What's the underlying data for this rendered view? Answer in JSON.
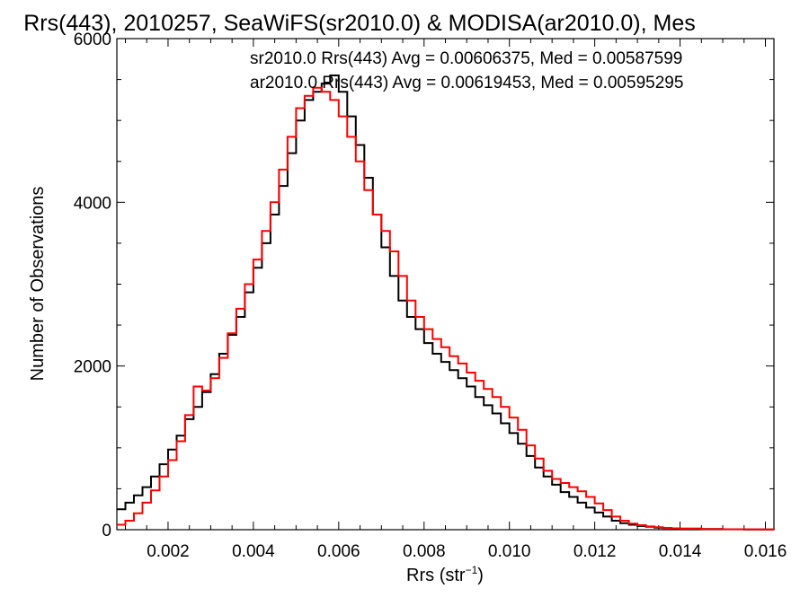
{
  "chart_data": {
    "type": "line",
    "title": "Rrs(443), 2010257, SeaWiFS(sr2010.0) & MODISA(ar2010.0), Mes",
    "xlabel_main": "Rrs (str",
    "xlabel_sup": "−1",
    "xlabel_tail": ")",
    "ylabel": "Number of Observations",
    "xlim": [
      0.0008,
      0.0162
    ],
    "ylim": [
      0,
      6000
    ],
    "xticks": [
      "0.002",
      "0.004",
      "0.006",
      "0.008",
      "0.010",
      "0.012",
      "0.014",
      "0.016"
    ],
    "xtick_values": [
      0.002,
      0.004,
      0.006,
      0.008,
      0.01,
      0.012,
      0.014,
      0.016
    ],
    "yticks": [
      "0",
      "2000",
      "4000",
      "6000"
    ],
    "ytick_values": [
      0,
      2000,
      4000,
      6000
    ],
    "grid": false,
    "legend_position": "top-right",
    "annotations": [
      {
        "text": "sr2010.0 Rrs(443) Avg = 0.00606375, Med = 0.00587599",
        "color": "#000000"
      },
      {
        "text": "ar2010.0 Rrs(443) Avg = 0.00619453, Med = 0.00595295",
        "color": "#ff0000"
      }
    ],
    "series": [
      {
        "name": "sr2010.0",
        "color": "#000000",
        "x": [
          0.0008,
          0.001,
          0.0012,
          0.0014,
          0.0016,
          0.0018,
          0.002,
          0.0022,
          0.0024,
          0.0026,
          0.0028,
          0.003,
          0.0032,
          0.0034,
          0.0036,
          0.0038,
          0.004,
          0.0042,
          0.0044,
          0.0046,
          0.0048,
          0.005,
          0.0052,
          0.0054,
          0.0056,
          0.0058,
          0.006,
          0.0062,
          0.0064,
          0.0066,
          0.0068,
          0.007,
          0.0072,
          0.0074,
          0.0076,
          0.0078,
          0.008,
          0.0082,
          0.0084,
          0.0086,
          0.0088,
          0.009,
          0.0092,
          0.0094,
          0.0096,
          0.0098,
          0.01,
          0.0102,
          0.0104,
          0.0106,
          0.0108,
          0.011,
          0.0112,
          0.0114,
          0.0116,
          0.0118,
          0.012,
          0.0122,
          0.0124,
          0.0126,
          0.0128,
          0.013,
          0.0132,
          0.0134,
          0.0136,
          0.0138,
          0.014,
          0.0145,
          0.015,
          0.0155,
          0.016,
          0.0162
        ],
        "y": [
          250,
          330,
          420,
          520,
          650,
          800,
          980,
          1150,
          1350,
          1500,
          1680,
          1900,
          2150,
          2380,
          2600,
          2900,
          3200,
          3500,
          3850,
          4200,
          4600,
          5000,
          5250,
          5350,
          5450,
          5550,
          5350,
          5050,
          4700,
          4300,
          3850,
          3450,
          3100,
          2800,
          2600,
          2450,
          2280,
          2150,
          2050,
          1950,
          1850,
          1750,
          1620,
          1520,
          1420,
          1300,
          1180,
          1050,
          900,
          760,
          650,
          550,
          460,
          400,
          330,
          270,
          210,
          160,
          110,
          80,
          60,
          45,
          35,
          25,
          20,
          15,
          12,
          8,
          5,
          3,
          2,
          1
        ]
      },
      {
        "name": "ar2010.0",
        "color": "#ff0000",
        "x": [
          0.0008,
          0.001,
          0.0012,
          0.0014,
          0.0016,
          0.0018,
          0.002,
          0.0022,
          0.0024,
          0.0026,
          0.0028,
          0.003,
          0.0032,
          0.0034,
          0.0036,
          0.0038,
          0.004,
          0.0042,
          0.0044,
          0.0046,
          0.0048,
          0.005,
          0.0052,
          0.0054,
          0.0056,
          0.0058,
          0.006,
          0.0062,
          0.0064,
          0.0066,
          0.0068,
          0.007,
          0.0072,
          0.0074,
          0.0076,
          0.0078,
          0.008,
          0.0082,
          0.0084,
          0.0086,
          0.0088,
          0.009,
          0.0092,
          0.0094,
          0.0096,
          0.0098,
          0.01,
          0.0102,
          0.0104,
          0.0106,
          0.0108,
          0.011,
          0.0112,
          0.0114,
          0.0116,
          0.0118,
          0.012,
          0.0122,
          0.0124,
          0.0126,
          0.0128,
          0.013,
          0.0132,
          0.0134,
          0.0136,
          0.0138,
          0.014,
          0.0145,
          0.015,
          0.0155,
          0.016,
          0.0162
        ],
        "y": [
          60,
          110,
          200,
          330,
          480,
          650,
          850,
          1080,
          1400,
          1750,
          1700,
          1850,
          2100,
          2400,
          2700,
          3000,
          3300,
          3650,
          4000,
          4400,
          4800,
          5150,
          5300,
          5400,
          5350,
          5250,
          5050,
          4800,
          4500,
          4150,
          3850,
          3650,
          3400,
          3100,
          2800,
          2600,
          2450,
          2330,
          2230,
          2120,
          2030,
          1920,
          1820,
          1720,
          1620,
          1500,
          1370,
          1220,
          1030,
          870,
          720,
          620,
          570,
          520,
          470,
          400,
          320,
          240,
          160,
          110,
          75,
          55,
          40,
          30,
          22,
          17,
          13,
          9,
          6,
          4,
          2,
          1
        ]
      }
    ]
  }
}
